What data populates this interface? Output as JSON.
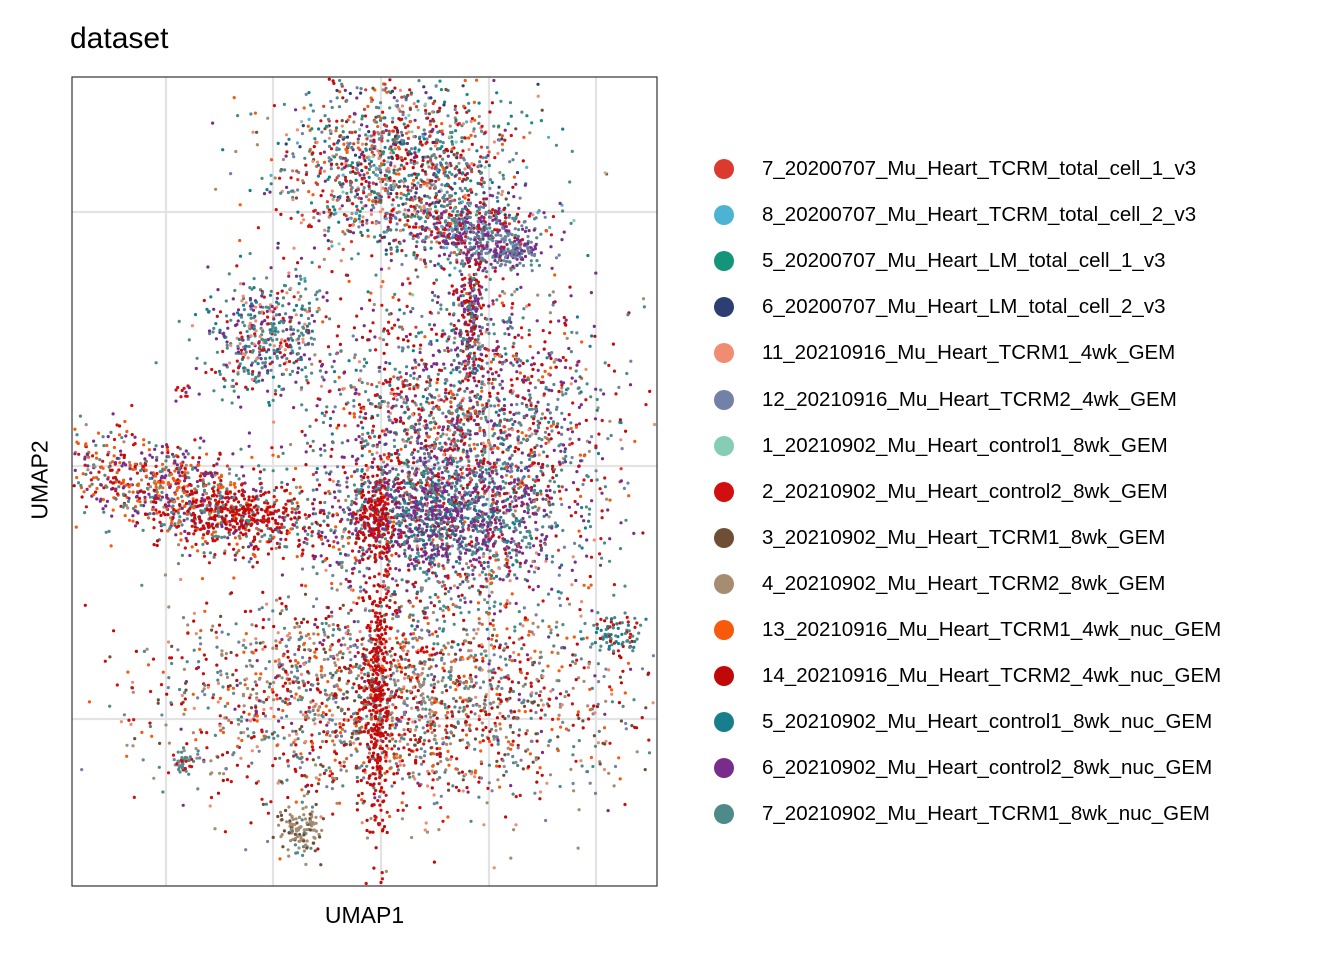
{
  "chart_data": {
    "type": "scatter",
    "title": "dataset",
    "xlabel": "UMAP1",
    "ylabel": "UMAP2",
    "grid": true,
    "tick_labels_shown": false,
    "legend_position": "right",
    "series": [
      {
        "name": "7_20200707_Mu_Heart_TCRM_total_cell_1_v3",
        "color": "#DC3A2E"
      },
      {
        "name": "8_20200707_Mu_Heart_TCRM_total_cell_2_v3",
        "color": "#4DB3D3"
      },
      {
        "name": "5_20200707_Mu_Heart_LM_total_cell_1_v3",
        "color": "#149479"
      },
      {
        "name": "6_20200707_Mu_Heart_LM_total_cell_2_v3",
        "color": "#2C3E72"
      },
      {
        "name": "11_20210916_Mu_Heart_TCRM1_4wk_GEM",
        "color": "#EF8C72"
      },
      {
        "name": "12_20210916_Mu_Heart_TCRM2_4wk_GEM",
        "color": "#7381A8"
      },
      {
        "name": "1_20210902_Mu_Heart_control1_8wk_GEM",
        "color": "#85CDB4"
      },
      {
        "name": "2_20210902_Mu_Heart_control2_8wk_GEM",
        "color": "#D10F0F"
      },
      {
        "name": "3_20210902_Mu_Heart_TCRM1_8wk_GEM",
        "color": "#6F4E36"
      },
      {
        "name": "4_20210902_Mu_Heart_TCRM2_8wk_GEM",
        "color": "#A68C70"
      },
      {
        "name": "13_20210916_Mu_Heart_TCRM1_4wk_nuc_GEM",
        "color": "#F65A0A"
      },
      {
        "name": "14_20210916_Mu_Heart_TCRM2_4wk_nuc_GEM",
        "color": "#C00808"
      },
      {
        "name": "5_20210902_Mu_Heart_control1_8wk_nuc_GEM",
        "color": "#177E8E"
      },
      {
        "name": "6_20210902_Mu_Heart_control2_8wk_nuc_GEM",
        "color": "#7A2C8A"
      },
      {
        "name": "7_20210902_Mu_Heart_TCRM1_8wk_nuc_GEM",
        "color": "#4F8A8A"
      }
    ]
  }
}
